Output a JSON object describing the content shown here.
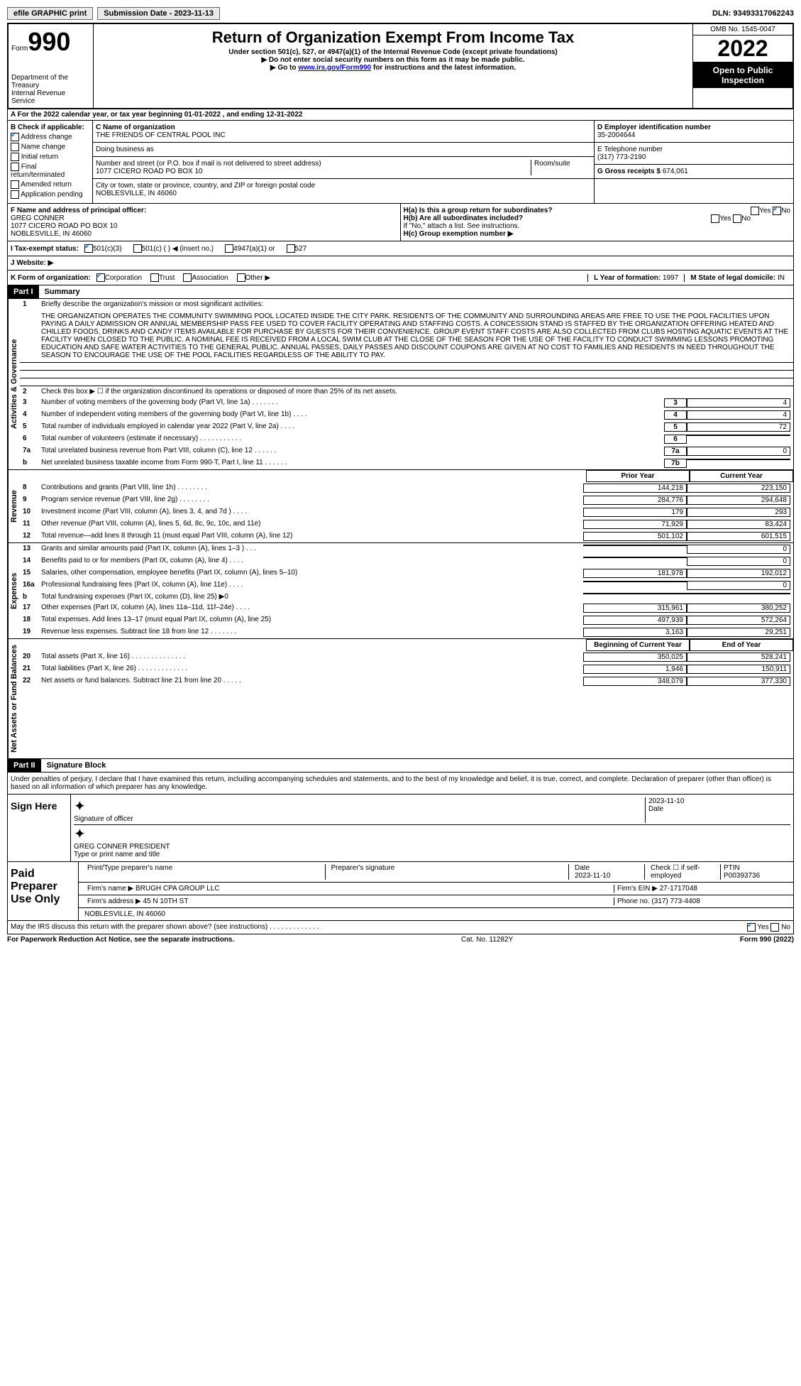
{
  "topbar": {
    "efile": "efile GRAPHIC print",
    "submission_label": "Submission Date - 2023-11-13",
    "dln": "DLN: 93493317062243"
  },
  "header": {
    "form_prefix": "Form",
    "form_number": "990",
    "dept": "Department of the Treasury",
    "irs": "Internal Revenue Service",
    "title": "Return of Organization Exempt From Income Tax",
    "sub1": "Under section 501(c), 527, or 4947(a)(1) of the Internal Revenue Code (except private foundations)",
    "sub2": "▶ Do not enter social security numbers on this form as it may be made public.",
    "sub3_pre": "▶ Go to ",
    "sub3_link": "www.irs.gov/Form990",
    "sub3_post": " for instructions and the latest information.",
    "omb": "OMB No. 1545-0047",
    "year": "2022",
    "inspection": "Open to Public Inspection"
  },
  "row_a": "A For the 2022 calendar year, or tax year beginning 01-01-2022   , and ending 12-31-2022",
  "section_b": {
    "b_label": "B Check if applicable:",
    "b_items": [
      "Address change",
      "Name change",
      "Initial return",
      "Final return/terminated",
      "Amended return",
      "Application pending"
    ],
    "c_label": "C Name of organization",
    "c_name": "THE FRIENDS OF CENTRAL POOL INC",
    "dba_label": "Doing business as",
    "addr_label": "Number and street (or P.O. box if mail is not delivered to street address)",
    "room_label": "Room/suite",
    "addr": "1077 CICERO ROAD PO BOX 10",
    "city_label": "City or town, state or province, country, and ZIP or foreign postal code",
    "city": "NOBLESVILLE, IN  46060",
    "d_label": "D Employer identification number",
    "d_val": "35-2004644",
    "e_label": "E Telephone number",
    "e_val": "(317) 773-2190",
    "g_label": "G Gross receipts $",
    "g_val": "674,061"
  },
  "section_f": {
    "f_label": "F  Name and address of principal officer:",
    "f_name": "GREG CONNER",
    "f_addr1": "1077 CICERO ROAD PO BOX 10",
    "f_addr2": "NOBLESVILLE, IN  46060",
    "ha_label": "H(a)  Is this a group return for subordinates?",
    "ha_yes": "Yes",
    "ha_no": "No",
    "hb_label": "H(b)  Are all subordinates included?",
    "hb_note": "If \"No,\" attach a list. See instructions.",
    "hc_label": "H(c)  Group exemption number ▶"
  },
  "row_i": {
    "label": "I  Tax-exempt status:",
    "opts": [
      "501(c)(3)",
      "501(c) (  ) ◀ (insert no.)",
      "4947(a)(1) or",
      "527"
    ]
  },
  "row_j": "J  Website: ▶",
  "row_k": {
    "label": "K Form of organization:",
    "opts": [
      "Corporation",
      "Trust",
      "Association",
      "Other ▶"
    ],
    "l_label": "L Year of formation:",
    "l_val": "1997",
    "m_label": "M State of legal domicile:",
    "m_val": "IN"
  },
  "part1": {
    "header": "Part I",
    "title": "Summary",
    "line1_label": "Briefly describe the organization's mission or most significant activities:",
    "mission": "THE ORGANIZATION OPERATES THE COMMUNITY SWIMMING POOL LOCATED INSIDE THE CITY PARK. RESIDENTS OF THE COMMUNITY AND SURROUNDING AREAS ARE FREE TO USE THE POOL FACILITIES UPON PAYING A DAILY ADMISSION OR ANNUAL MEMBERSHIP PASS FEE USED TO COVER FACILITY OPERATING AND STAFFING COSTS. A CONCESSION STAND IS STAFFED BY THE ORGANIZATION OFFERING HEATED AND CHILLED FOODS, DRINKS AND CANDY ITEMS AVAILABLE FOR PURCHASE BY GUESTS FOR THEIR CONVENIENCE. GROUP EVENT STAFF COSTS ARE ALSO COLLECTED FROM CLUBS HOSTING AQUATIC EVENTS AT THE FACILITY WHEN CLOSED TO THE PUBLIC. A NOMINAL FEE IS RECEIVED FROM A LOCAL SWIM CLUB AT THE CLOSE OF THE SEASON FOR THE USE OF THE FACILITY TO CONDUCT SWIMMING LESSONS PROMOTING EDUCATION AND SAFE WATER ACTIVITIES TO THE GENERAL PUBLIC. ANNUAL PASSES, DAILY PASSES AND DISCOUNT COUPONS ARE GIVEN AT NO COST TO FAMILIES AND RESIDENTS IN NEED THROUGHOUT THE SEASON TO ENCOURAGE THE USE OF THE POOL FACILITIES REGARDLESS OF THE ABILITY TO PAY.",
    "line2": "Check this box ▶ ☐ if the organization discontinued its operations or disposed of more than 25% of its net assets.",
    "gov_lines": [
      {
        "num": "3",
        "desc": "Number of voting members of the governing body (Part VI, line 1a)   .    .    .    .    .    .    .",
        "box": "3",
        "val": "4"
      },
      {
        "num": "4",
        "desc": "Number of independent voting members of the governing body (Part VI, line 1b)   .    .    .    .",
        "box": "4",
        "val": "4"
      },
      {
        "num": "5",
        "desc": "Total number of individuals employed in calendar year 2022 (Part V, line 2a)   .    .    .    .",
        "box": "5",
        "val": "72"
      },
      {
        "num": "6",
        "desc": "Total number of volunteers (estimate if necessary)   .    .    .    .    .    .    .    .    .    .    .",
        "box": "6",
        "val": ""
      },
      {
        "num": "7a",
        "desc": "Total unrelated business revenue from Part VIII, column (C), line 12   .    .    .    .    .    .",
        "box": "7a",
        "val": "0"
      },
      {
        "num": "b",
        "desc": "Net unrelated business taxable income from Form 990-T, Part I, line 11   .    .    .    .    .    .",
        "box": "7b",
        "val": ""
      }
    ],
    "prior_label": "Prior Year",
    "current_label": "Current Year",
    "rev_lines": [
      {
        "num": "8",
        "desc": "Contributions and grants (Part VIII, line 1h)   .    .    .    .    .    .    .    .",
        "v1": "144,218",
        "v2": "223,150"
      },
      {
        "num": "9",
        "desc": "Program service revenue (Part VIII, line 2g)   .    .    .    .    .    .    .    .",
        "v1": "284,776",
        "v2": "294,648"
      },
      {
        "num": "10",
        "desc": "Investment income (Part VIII, column (A), lines 3, 4, and 7d )   .    .    .    .",
        "v1": "179",
        "v2": "293"
      },
      {
        "num": "11",
        "desc": "Other revenue (Part VIII, column (A), lines 5, 6d, 8c, 9c, 10c, and 11e)",
        "v1": "71,929",
        "v2": "83,424"
      },
      {
        "num": "12",
        "desc": "Total revenue—add lines 8 through 11 (must equal Part VIII, column (A), line 12)",
        "v1": "501,102",
        "v2": "601,515"
      }
    ],
    "exp_lines": [
      {
        "num": "13",
        "desc": "Grants and similar amounts paid (Part IX, column (A), lines 1–3 )   .    .    .",
        "v1": "",
        "v2": "0"
      },
      {
        "num": "14",
        "desc": "Benefits paid to or for members (Part IX, column (A), line 4)   .    .    .    .",
        "v1": "",
        "v2": "0"
      },
      {
        "num": "15",
        "desc": "Salaries, other compensation, employee benefits (Part IX, column (A), lines 5–10)",
        "v1": "181,978",
        "v2": "192,012"
      },
      {
        "num": "16a",
        "desc": "Professional fundraising fees (Part IX, column (A), line 11e)   .    .    .    .",
        "v1": "",
        "v2": "0"
      },
      {
        "num": "b",
        "desc": "Total fundraising expenses (Part IX, column (D), line 25) ▶0",
        "v1": "grey",
        "v2": "grey"
      },
      {
        "num": "17",
        "desc": "Other expenses (Part IX, column (A), lines 11a–11d, 11f–24e)   .    .    .    .",
        "v1": "315,961",
        "v2": "380,252"
      },
      {
        "num": "18",
        "desc": "Total expenses. Add lines 13–17 (must equal Part IX, column (A), line 25)",
        "v1": "497,939",
        "v2": "572,264"
      },
      {
        "num": "19",
        "desc": "Revenue less expenses. Subtract line 18 from line 12   .    .    .    .    .    .    .",
        "v1": "3,163",
        "v2": "29,251"
      }
    ],
    "begin_label": "Beginning of Current Year",
    "end_label": "End of Year",
    "net_lines": [
      {
        "num": "20",
        "desc": "Total assets (Part X, line 16)   .    .    .    .    .    .    .    .    .    .    .    .    .    .",
        "v1": "350,025",
        "v2": "528,241"
      },
      {
        "num": "21",
        "desc": "Total liabilities (Part X, line 26)   .    .    .    .    .    .    .    .    .    .    .    .    .",
        "v1": "1,946",
        "v2": "150,911"
      },
      {
        "num": "22",
        "desc": "Net assets or fund balances. Subtract line 21 from line 20   .    .    .    .    .",
        "v1": "348,079",
        "v2": "377,330"
      }
    ],
    "vert_gov": "Activities & Governance",
    "vert_rev": "Revenue",
    "vert_exp": "Expenses",
    "vert_net": "Net Assets or Fund Balances"
  },
  "part2": {
    "header": "Part II",
    "title": "Signature Block",
    "penalty": "Under penalties of perjury, I declare that I have examined this return, including accompanying schedules and statements, and to the best of my knowledge and belief, it is true, correct, and complete. Declaration of preparer (other than officer) is based on all information of which preparer has any knowledge.",
    "sign_here": "Sign Here",
    "sig_officer_label": "Signature of officer",
    "sig_date": "2023-11-10",
    "sig_date_label": "Date",
    "officer_name": "GREG CONNER  PRESIDENT",
    "officer_type_label": "Type or print name and title",
    "paid_label": "Paid Preparer Use Only",
    "prep_name_label": "Print/Type preparer's name",
    "prep_sig_label": "Preparer's signature",
    "prep_date_label": "Date",
    "prep_date": "2023-11-10",
    "prep_check_label": "Check ☐ if self-employed",
    "ptin_label": "PTIN",
    "ptin": "P00393736",
    "firm_name_label": "Firm's name    ▶",
    "firm_name": "BRUGH CPA GROUP LLC",
    "firm_ein_label": "Firm's EIN ▶",
    "firm_ein": "27-1717048",
    "firm_addr_label": "Firm's address ▶",
    "firm_addr1": "45 N 10TH ST",
    "firm_addr2": "NOBLESVILLE, IN  46060",
    "phone_label": "Phone no.",
    "phone": "(317) 773-4408",
    "discuss": "May the IRS discuss this return with the preparer shown above? (see instructions)   .    .    .    .    .    .    .    .    .    .    .    .    .",
    "discuss_yes": "Yes",
    "discuss_no": "No"
  },
  "footer": {
    "left": "For Paperwork Reduction Act Notice, see the separate instructions.",
    "mid": "Cat. No. 11282Y",
    "right": "Form 990 (2022)"
  }
}
